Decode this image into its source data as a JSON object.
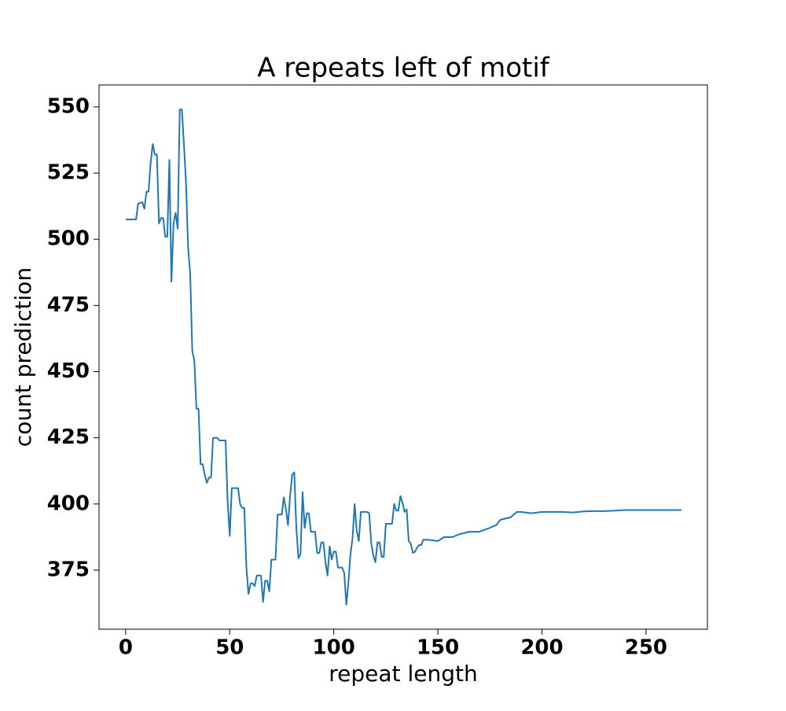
{
  "chart_data": {
    "type": "line",
    "title": "A repeats left of motif",
    "x_label": "repeat length",
    "y_label": "count prediction",
    "x": [
      0,
      1,
      2,
      3,
      4,
      5,
      6,
      8,
      9,
      10,
      11,
      12,
      13,
      14,
      15,
      16,
      17,
      18,
      19,
      20,
      21,
      22,
      23,
      24,
      25,
      26,
      27,
      28,
      29,
      30,
      31,
      32,
      33,
      34,
      35,
      36,
      37,
      38,
      39,
      40,
      41,
      42,
      43,
      44,
      45,
      46,
      47,
      48,
      49,
      50,
      51,
      52,
      53,
      54,
      55,
      56,
      57,
      58,
      59,
      60,
      61,
      62,
      63,
      64,
      65,
      66,
      67,
      68,
      69,
      70,
      71,
      72,
      73,
      74,
      75,
      76,
      77,
      78,
      79,
      80,
      81,
      82,
      83,
      84,
      85,
      86,
      87,
      88,
      89,
      90,
      91,
      92,
      93,
      94,
      95,
      96,
      97,
      98,
      99,
      100,
      101,
      102,
      103,
      104,
      105,
      106,
      107,
      108,
      109,
      110,
      111,
      112,
      113,
      114,
      115,
      116,
      117,
      118,
      119,
      120,
      121,
      122,
      123,
      124,
      125,
      126,
      127,
      128,
      129,
      130,
      131,
      132,
      133,
      134,
      135,
      136,
      137,
      138,
      139,
      140,
      141,
      142,
      143,
      145,
      150,
      153,
      157,
      160,
      165,
      170,
      175,
      178,
      180,
      185,
      188,
      190,
      195,
      200,
      205,
      210,
      215,
      220,
      225,
      230,
      235,
      240,
      250,
      267
    ],
    "series": [
      {
        "name": "count prediction",
        "color": "#1f77b4",
        "values": [
          507.5,
          507.5,
          507.5,
          507.5,
          507.5,
          507.5,
          513.5,
          514,
          511.5,
          518,
          518,
          529,
          536,
          532,
          532,
          506,
          508,
          508,
          501,
          501,
          530,
          484,
          506,
          510,
          504,
          549,
          549,
          536,
          521,
          497,
          487,
          458,
          454,
          436,
          436,
          415,
          415,
          411,
          408,
          410,
          410,
          425,
          425,
          425,
          424,
          424,
          424,
          424,
          401,
          388,
          406,
          406,
          406,
          406,
          400,
          398.5,
          398.5,
          376,
          366,
          370,
          370,
          369,
          373,
          373,
          373,
          363,
          371,
          371,
          367,
          379,
          379,
          379,
          396,
          396,
          396,
          402.5,
          398,
          392,
          403,
          411,
          412,
          391,
          379.5,
          381,
          404.5,
          391,
          396.5,
          396.5,
          389.5,
          389.5,
          389.5,
          381.5,
          381.5,
          385.5,
          385.5,
          378,
          373,
          384,
          379,
          382,
          382,
          376,
          376,
          376,
          374,
          362,
          370,
          381,
          387,
          400,
          390,
          386,
          397,
          397,
          397,
          397,
          396.5,
          385,
          380.5,
          378,
          385.5,
          385.5,
          380,
          380,
          392.5,
          392.5,
          392.5,
          392.5,
          400,
          397.5,
          397.5,
          403,
          400.5,
          397,
          398,
          386,
          385,
          381.5,
          382,
          383.5,
          384.5,
          384.5,
          386.5,
          386.5,
          386,
          387.5,
          387.5,
          388.5,
          389.5,
          389.5,
          391,
          392,
          394,
          395,
          397,
          397,
          396.5,
          397,
          397,
          397,
          396.8,
          397.2,
          397.3,
          397.3,
          397.5,
          397.7,
          397.7,
          397.7
        ]
      }
    ],
    "xlim": [
      -12.8,
      279.5
    ],
    "ylim": [
      352.7,
      558.3
    ],
    "xticks": [
      0,
      50,
      100,
      150,
      200,
      250
    ],
    "yticks": [
      375,
      400,
      425,
      450,
      475,
      500,
      525,
      550
    ]
  }
}
